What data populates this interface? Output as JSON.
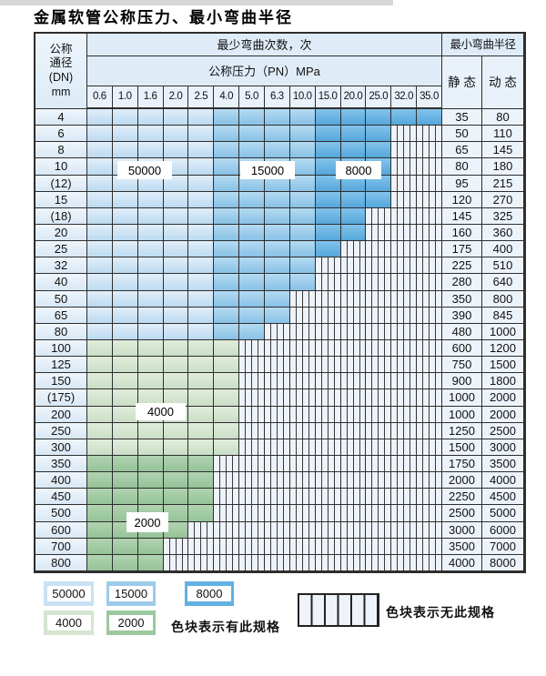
{
  "title": "金属软管公称压力、最小弯曲半径",
  "header": {
    "dn_lines": [
      "公称",
      "通径",
      "(DN)",
      "mm"
    ],
    "cycles_label": "最少弯曲次数，次",
    "radius_label": "最小弯曲半径",
    "pressure_label": "公称压力（PN）MPa",
    "static_label": "静 态",
    "dynamic_label": "动 态",
    "pressures": [
      "0.6",
      "1.0",
      "1.6",
      "2.0",
      "2.5",
      "4.0",
      "5.0",
      "6.3",
      "10.0",
      "15.0",
      "20.0",
      "25.0",
      "32.0",
      "35.0"
    ]
  },
  "colors": {
    "z50000": "#c8e1f4",
    "z15000": "#9ccbea",
    "z8000": "#63b0e2",
    "z4000": "#d4e5d0",
    "z2000": "#9bc89e",
    "hatchbg": "#eef3fb",
    "grid": "#2e2e2e"
  },
  "zone_labels": {
    "l50000": "50000",
    "l15000": "15000",
    "l8000": "8000",
    "l4000": "4000",
    "l2000": "2000"
  },
  "rows": [
    {
      "dn": "4",
      "static": "35",
      "dynamic": "80",
      "zone": "blue",
      "colored": 14
    },
    {
      "dn": "6",
      "static": "50",
      "dynamic": "110",
      "zone": "blue",
      "colored": 12
    },
    {
      "dn": "8",
      "static": "65",
      "dynamic": "145",
      "zone": "blue",
      "colored": 12
    },
    {
      "dn": "10",
      "static": "80",
      "dynamic": "180",
      "zone": "blue",
      "colored": 12
    },
    {
      "dn": "(12)",
      "static": "95",
      "dynamic": "215",
      "zone": "blue",
      "colored": 12
    },
    {
      "dn": "15",
      "static": "120",
      "dynamic": "270",
      "zone": "blue",
      "colored": 12
    },
    {
      "dn": "(18)",
      "static": "145",
      "dynamic": "325",
      "zone": "blue",
      "colored": 11
    },
    {
      "dn": "20",
      "static": "160",
      "dynamic": "360",
      "zone": "blue",
      "colored": 11
    },
    {
      "dn": "25",
      "static": "175",
      "dynamic": "400",
      "zone": "blue",
      "colored": 10
    },
    {
      "dn": "32",
      "static": "225",
      "dynamic": "510",
      "zone": "blue",
      "colored": 9
    },
    {
      "dn": "40",
      "static": "280",
      "dynamic": "640",
      "zone": "blue",
      "colored": 9
    },
    {
      "dn": "50",
      "static": "350",
      "dynamic": "800",
      "zone": "blue",
      "colored": 8
    },
    {
      "dn": "65",
      "static": "390",
      "dynamic": "845",
      "zone": "blue",
      "colored": 8
    },
    {
      "dn": "80",
      "static": "480",
      "dynamic": "1000",
      "zone": "blue",
      "colored": 7
    },
    {
      "dn": "100",
      "static": "600",
      "dynamic": "1200",
      "zone": "z4000",
      "colored": 6
    },
    {
      "dn": "125",
      "static": "750",
      "dynamic": "1500",
      "zone": "z4000",
      "colored": 6
    },
    {
      "dn": "150",
      "static": "900",
      "dynamic": "1800",
      "zone": "z4000",
      "colored": 6
    },
    {
      "dn": "(175)",
      "static": "1000",
      "dynamic": "2000",
      "zone": "z4000",
      "colored": 6
    },
    {
      "dn": "200",
      "static": "1000",
      "dynamic": "2000",
      "zone": "z4000",
      "colored": 6
    },
    {
      "dn": "250",
      "static": "1250",
      "dynamic": "2500",
      "zone": "z4000",
      "colored": 6
    },
    {
      "dn": "300",
      "static": "1500",
      "dynamic": "3000",
      "zone": "z4000",
      "colored": 6
    },
    {
      "dn": "350",
      "static": "1750",
      "dynamic": "3500",
      "zone": "z2000",
      "colored": 5
    },
    {
      "dn": "400",
      "static": "2000",
      "dynamic": "4000",
      "zone": "z2000",
      "colored": 5
    },
    {
      "dn": "450",
      "static": "2250",
      "dynamic": "4500",
      "zone": "z2000",
      "colored": 5
    },
    {
      "dn": "500",
      "static": "2500",
      "dynamic": "5000",
      "zone": "z2000",
      "colored": 5
    },
    {
      "dn": "600",
      "static": "3000",
      "dynamic": "6000",
      "zone": "z2000",
      "colored": 4
    },
    {
      "dn": "700",
      "static": "3500",
      "dynamic": "7000",
      "zone": "z2000",
      "colored": 3
    },
    {
      "dn": "800",
      "static": "4000",
      "dynamic": "8000",
      "zone": "z2000",
      "colored": 3
    }
  ],
  "legend": {
    "swatches": {
      "s50000": "50000",
      "s15000": "15000",
      "s8000": "8000",
      "s4000": "4000",
      "s2000": "2000"
    },
    "has_spec_label": "色块表示有此规格",
    "no_spec_label": "色块表示无此规格"
  }
}
